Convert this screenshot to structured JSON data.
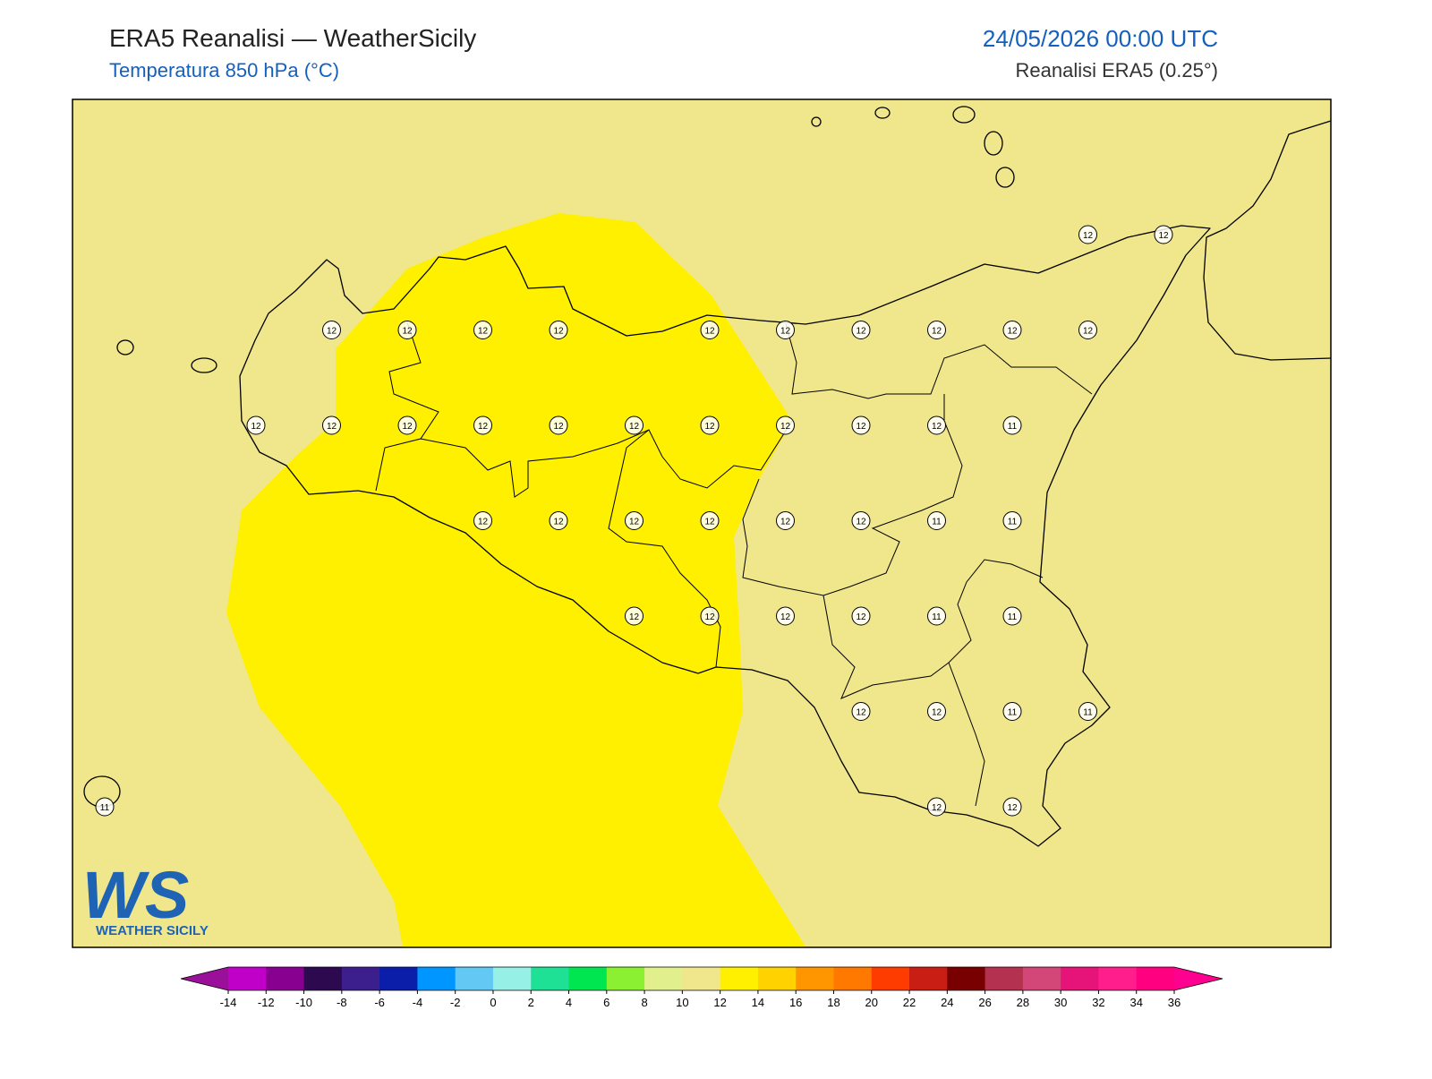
{
  "header": {
    "title": "ERA5 Reanalisi — WeatherSicily",
    "subtitle": "Temperatura 850 hPa (°C)",
    "datetime": "24/05/2026 00:00 UTC",
    "source": "Reanalisi ERA5 (0.25°)"
  },
  "stations": {
    "rows": [
      [
        null,
        null,
        null,
        null,
        null,
        null,
        null,
        null,
        null,
        null,
        null,
        null,
        null,
        12,
        12
      ],
      [
        null,
        null,
        null,
        12,
        12,
        12,
        12,
        null,
        12,
        12,
        12,
        12,
        12,
        12,
        null
      ],
      [
        null,
        null,
        12,
        12,
        12,
        12,
        12,
        12,
        12,
        12,
        12,
        12,
        11,
        null,
        null
      ],
      [
        null,
        null,
        null,
        null,
        null,
        12,
        12,
        12,
        12,
        12,
        12,
        11,
        11,
        null,
        null
      ],
      [
        null,
        null,
        null,
        null,
        null,
        null,
        null,
        12,
        12,
        12,
        12,
        11,
        11,
        null,
        null
      ],
      [
        null,
        null,
        null,
        null,
        null,
        null,
        null,
        null,
        null,
        null,
        12,
        12,
        11,
        11,
        null
      ],
      [
        11,
        null,
        null,
        null,
        null,
        null,
        null,
        null,
        null,
        null,
        null,
        12,
        12,
        null,
        null
      ]
    ]
  },
  "colorbar": {
    "ticks": [
      -14,
      -12,
      -10,
      -8,
      -6,
      -4,
      -2,
      0,
      2,
      4,
      6,
      8,
      10,
      12,
      14,
      16,
      18,
      20,
      22,
      24,
      26,
      28,
      30,
      32,
      34,
      36
    ],
    "colors": [
      "#c000c8",
      "#880090",
      "#2d0a50",
      "#3c1e8c",
      "#0a1eaa",
      "#0096ff",
      "#64c8f5",
      "#96f0e6",
      "#1ee196",
      "#00e650",
      "#8cf032",
      "#e1f08c",
      "#f0e68c",
      "#fff000",
      "#ffd200",
      "#ff9600",
      "#ff7800",
      "#ff3c00",
      "#c81e14",
      "#780000",
      "#b43250",
      "#d24678",
      "#e61478",
      "#ff1e8c",
      "#ff0080"
    ],
    "under_color": "#9b109b",
    "over_color": "#ff0090"
  },
  "logo": {
    "letters": "WS",
    "name": "WEATHER SICILY"
  }
}
